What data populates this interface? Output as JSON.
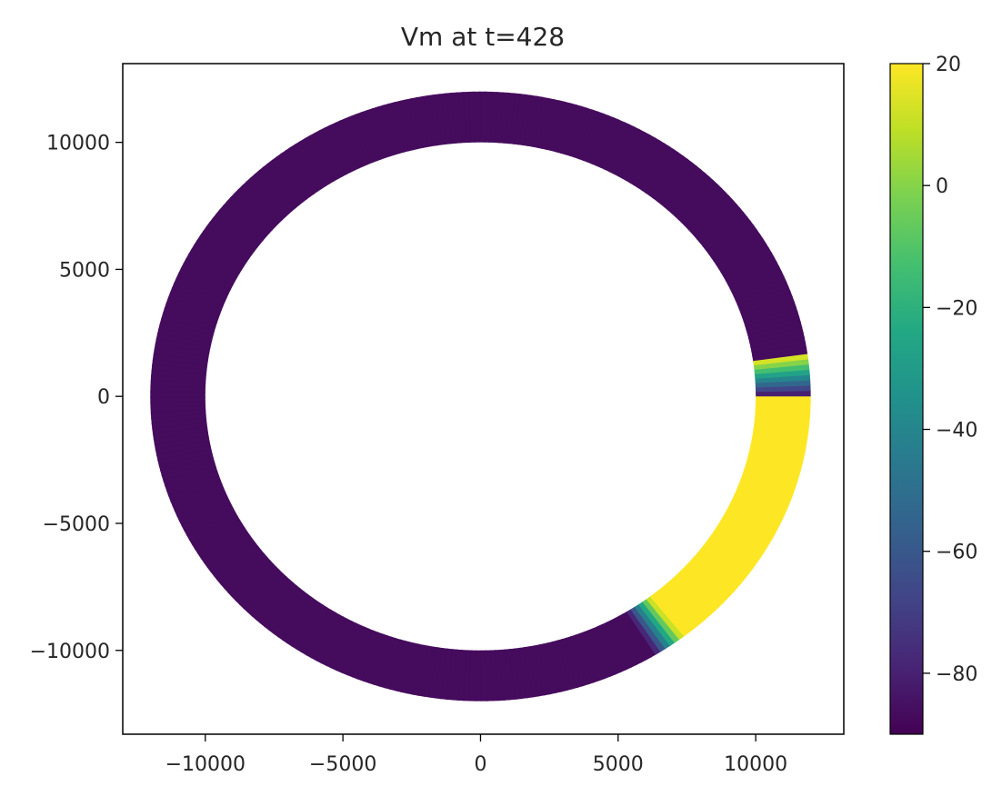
{
  "chart_data": {
    "type": "heatmap",
    "title": "Vm at t=428",
    "xlabel": "",
    "ylabel": "",
    "xlim": [
      -13000,
      13200
    ],
    "ylim": [
      -13300,
      13100
    ],
    "xticks": [
      -10000,
      -5000,
      0,
      5000,
      10000
    ],
    "xtick_labels": [
      "−10000",
      "−5000",
      "0",
      "5000",
      "10000"
    ],
    "yticks": [
      10000,
      5000,
      0,
      -5000,
      -10000
    ],
    "ytick_labels": [
      "10000",
      "5000",
      "0",
      "−5000",
      "−10000"
    ],
    "grid": false,
    "colormap": "viridis",
    "colorbar": {
      "range": [
        -90,
        20
      ],
      "ticks": [
        20,
        0,
        -20,
        -40,
        -60,
        -80
      ],
      "tick_labels": [
        "20",
        "0",
        "−20",
        "−40",
        "−60",
        "−80"
      ]
    },
    "domain": {
      "shape": "annulus",
      "center": [
        0,
        0
      ],
      "inner_radius": 10000,
      "outer_radius": 12000
    },
    "field": {
      "rest_value": -87,
      "depolarized_value": 20,
      "wave_segments": [
        {
          "angle_from_deg": 0,
          "angle_to_deg": 8,
          "value_from": -87,
          "value_to": 20
        },
        {
          "angle_from_deg": -4,
          "angle_to_deg": -52,
          "value": 20
        },
        {
          "angle_from_deg": -52,
          "angle_to_deg": -58,
          "value_from": 20,
          "value_to": -87
        }
      ]
    }
  }
}
